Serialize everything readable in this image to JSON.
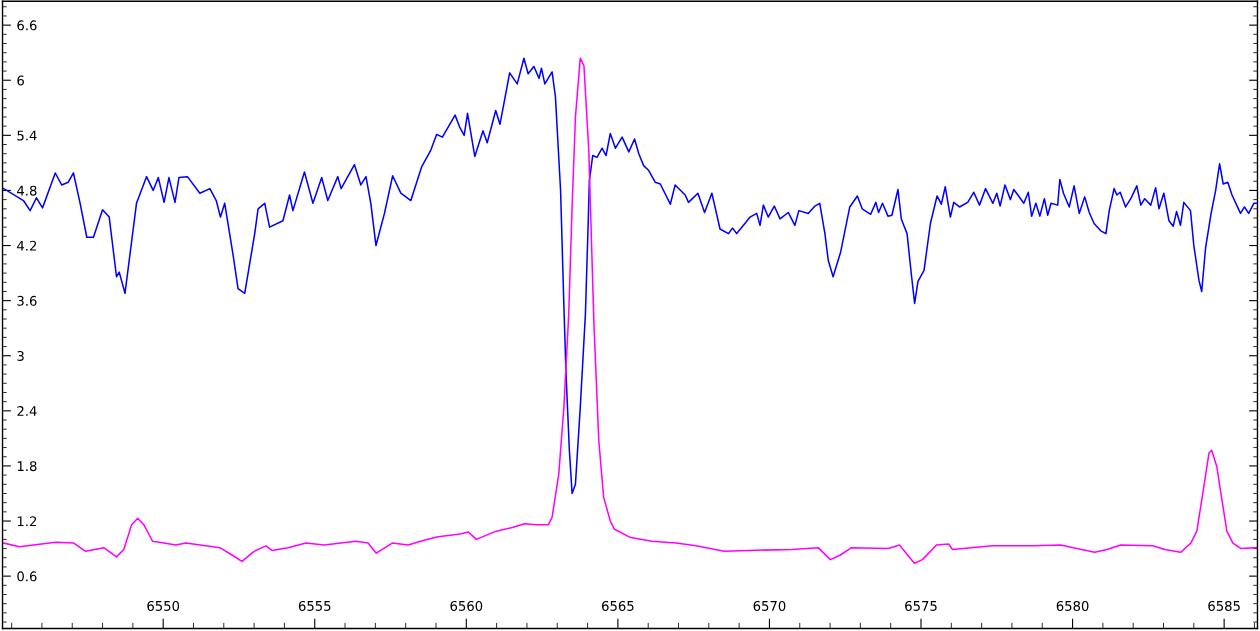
{
  "chart_data": {
    "type": "line",
    "xlim": [
      6544.7,
      6586.1
    ],
    "ylim": [
      0.03,
      6.86
    ],
    "xticks": [
      {
        "value": 6545,
        "label": null
      },
      {
        "value": 6546,
        "label": null
      },
      {
        "value": 6547,
        "label": null
      },
      {
        "value": 6548,
        "label": null
      },
      {
        "value": 6549,
        "label": null
      },
      6550,
      {
        "value": 6551,
        "label": null
      },
      {
        "value": 6552,
        "label": null
      },
      {
        "value": 6553,
        "label": null
      },
      {
        "value": 6554,
        "label": null
      },
      6555,
      {
        "value": 6556,
        "label": null
      },
      {
        "value": 6557,
        "label": null
      },
      {
        "value": 6558,
        "label": null
      },
      {
        "value": 6559,
        "label": null
      },
      6560,
      {
        "value": 6561,
        "label": null
      },
      {
        "value": 6562,
        "label": null
      },
      {
        "value": 6563,
        "label": null
      },
      {
        "value": 6564,
        "label": null
      },
      6565,
      {
        "value": 6566,
        "label": null
      },
      {
        "value": 6567,
        "label": null
      },
      {
        "value": 6568,
        "label": null
      },
      {
        "value": 6569,
        "label": null
      },
      6570,
      {
        "value": 6571,
        "label": null
      },
      {
        "value": 6572,
        "label": null
      },
      {
        "value": 6573,
        "label": null
      },
      {
        "value": 6574,
        "label": null
      },
      6575,
      {
        "value": 6576,
        "label": null
      },
      {
        "value": 6577,
        "label": null
      },
      {
        "value": 6578,
        "label": null
      },
      {
        "value": 6579,
        "label": null
      },
      6580,
      {
        "value": 6581,
        "label": null
      },
      {
        "value": 6582,
        "label": null
      },
      {
        "value": 6583,
        "label": null
      },
      {
        "value": 6584,
        "label": null
      },
      6585,
      {
        "value": 6586,
        "label": null
      }
    ],
    "yticks": [
      {
        "value": 0.1,
        "label": null
      },
      {
        "value": 0.2,
        "label": null
      },
      {
        "value": 0.3,
        "label": null
      },
      {
        "value": 0.4,
        "label": null
      },
      {
        "value": 0.5,
        "label": null
      },
      0.6,
      {
        "value": 0.7,
        "label": null
      },
      {
        "value": 0.8,
        "label": null
      },
      {
        "value": 0.9,
        "label": null
      },
      {
        "value": 1.0,
        "label": null
      },
      {
        "value": 1.1,
        "label": null
      },
      1.2,
      {
        "value": 1.3,
        "label": null
      },
      {
        "value": 1.4,
        "label": null
      },
      {
        "value": 1.5,
        "label": null
      },
      {
        "value": 1.6,
        "label": null
      },
      {
        "value": 1.7,
        "label": null
      },
      1.8,
      {
        "value": 1.9,
        "label": null
      },
      {
        "value": 2.0,
        "label": null
      },
      {
        "value": 2.1,
        "label": null
      },
      {
        "value": 2.2,
        "label": null
      },
      {
        "value": 2.3,
        "label": null
      },
      2.4,
      {
        "value": 2.5,
        "label": null
      },
      {
        "value": 2.6,
        "label": null
      },
      {
        "value": 2.7,
        "label": null
      },
      {
        "value": 2.8,
        "label": null
      },
      {
        "value": 2.9,
        "label": null
      },
      3,
      {
        "value": 3.1,
        "label": null
      },
      {
        "value": 3.2,
        "label": null
      },
      {
        "value": 3.3,
        "label": null
      },
      {
        "value": 3.4,
        "label": null
      },
      {
        "value": 3.5,
        "label": null
      },
      3.6,
      {
        "value": 3.7,
        "label": null
      },
      {
        "value": 3.8,
        "label": null
      },
      {
        "value": 3.9,
        "label": null
      },
      {
        "value": 4.0,
        "label": null
      },
      {
        "value": 4.1,
        "label": null
      },
      4.2,
      {
        "value": 4.3,
        "label": null
      },
      {
        "value": 4.4,
        "label": null
      },
      {
        "value": 4.5,
        "label": null
      },
      {
        "value": 4.6,
        "label": null
      },
      {
        "value": 4.7,
        "label": null
      },
      4.8,
      {
        "value": 4.9,
        "label": null
      },
      {
        "value": 5.0,
        "label": null
      },
      {
        "value": 5.1,
        "label": null
      },
      {
        "value": 5.2,
        "label": null
      },
      {
        "value": 5.3,
        "label": null
      },
      5.4,
      {
        "value": 5.5,
        "label": null
      },
      {
        "value": 5.6,
        "label": null
      },
      {
        "value": 5.7,
        "label": null
      },
      {
        "value": 5.8,
        "label": null
      },
      {
        "value": 5.9,
        "label": null
      },
      6,
      {
        "value": 6.1,
        "label": null
      },
      {
        "value": 6.2,
        "label": null
      },
      {
        "value": 6.3,
        "label": null
      },
      {
        "value": 6.4,
        "label": null
      },
      {
        "value": 6.5,
        "label": null
      },
      6.6,
      {
        "value": 6.7,
        "label": null
      },
      {
        "value": 6.8,
        "label": null
      }
    ],
    "marker": "none",
    "line_style": "solid",
    "series": [
      {
        "color": "#0000ff",
        "x": [
          6544.74,
          6545.39,
          6545.61,
          6545.82,
          6546.02,
          6546.44,
          6546.65,
          6546.87,
          6547.04,
          6547.26,
          6547.48,
          6547.7,
          6548.0,
          6548.22,
          6548.46,
          6548.55,
          6548.74,
          6549.12,
          6549.45,
          6549.67,
          6549.84,
          6550.03,
          6550.19,
          6550.39,
          6550.52,
          6550.8,
          6551.21,
          6551.54,
          6551.75,
          6551.89,
          6552.03,
          6552.3,
          6552.47,
          6552.69,
          6553.02,
          6553.13,
          6553.35,
          6553.51,
          6553.95,
          6554.17,
          6554.28,
          6554.66,
          6554.94,
          6555.23,
          6555.43,
          6555.76,
          6555.87,
          6556.31,
          6556.52,
          6556.69,
          6556.85,
          6557.02,
          6557.3,
          6557.57,
          6557.84,
          6558.17,
          6558.53,
          6558.83,
          6559.02,
          6559.21,
          6559.63,
          6559.78,
          6559.93,
          6560.04,
          6560.28,
          6560.55,
          6560.69,
          6560.97,
          6561.11,
          6561.43,
          6561.68,
          6561.9,
          6562.04,
          6562.23,
          6562.4,
          6562.48,
          6562.59,
          6562.83,
          6562.94,
          6563.11,
          6563.22,
          6563.29,
          6563.4,
          6563.49,
          6563.6,
          6563.76,
          6563.93,
          6564.02,
          6564.06,
          6564.17,
          6564.31,
          6564.48,
          6564.61,
          6564.75,
          6564.92,
          6565.14,
          6565.36,
          6565.55,
          6565.69,
          6565.85,
          6566.01,
          6566.23,
          6566.4,
          6566.73,
          6566.89,
          6567.22,
          6567.33,
          6567.64,
          6567.86,
          6568.1,
          6568.37,
          6568.65,
          6568.78,
          6568.92,
          6569.19,
          6569.36,
          6569.58,
          6569.69,
          6569.8,
          6569.96,
          6570.16,
          6570.35,
          6570.62,
          6570.84,
          6570.97,
          6571.28,
          6571.5,
          6571.66,
          6571.83,
          6571.94,
          6572.1,
          6572.35,
          6572.65,
          6572.9,
          6573.06,
          6573.34,
          6573.51,
          6573.6,
          6573.73,
          6573.91,
          6574.04,
          6574.24,
          6574.35,
          6574.54,
          6574.68,
          6574.79,
          6574.9,
          6575.1,
          6575.31,
          6575.53,
          6575.67,
          6575.8,
          6575.97,
          6576.08,
          6576.27,
          6576.54,
          6576.74,
          6576.93,
          6577.13,
          6577.37,
          6577.5,
          6577.61,
          6577.77,
          6577.95,
          6578.06,
          6578.22,
          6578.39,
          6578.54,
          6578.65,
          6578.79,
          6578.92,
          6579.07,
          6579.18,
          6579.29,
          6579.51,
          6579.58,
          6579.7,
          6579.89,
          6580.05,
          6580.22,
          6580.4,
          6580.55,
          6580.71,
          6580.93,
          6581.1,
          6581.21,
          6581.37,
          6581.46,
          6581.57,
          6581.75,
          6581.92,
          6582.12,
          6582.25,
          6582.38,
          6582.58,
          6582.74,
          6582.85,
          6583.01,
          6583.18,
          6583.32,
          6583.43,
          6583.56,
          6583.67,
          6583.89,
          6584.0,
          6584.17,
          6584.26,
          6584.39,
          6584.57,
          6584.72,
          6584.85,
          6584.97,
          6585.12,
          6585.26,
          6585.54,
          6585.67,
          6585.81,
          6585.98,
          6586.07
        ],
        "values": [
          4.82,
          4.69,
          4.58,
          4.72,
          4.61,
          4.99,
          4.86,
          4.89,
          4.99,
          4.66,
          4.29,
          4.29,
          4.59,
          4.51,
          3.86,
          3.91,
          3.68,
          4.66,
          4.95,
          4.8,
          4.94,
          4.67,
          4.94,
          4.67,
          4.94,
          4.95,
          4.77,
          4.82,
          4.69,
          4.51,
          4.66,
          4.11,
          3.73,
          3.68,
          4.33,
          4.6,
          4.66,
          4.4,
          4.47,
          4.75,
          4.58,
          5.0,
          4.66,
          4.94,
          4.69,
          4.95,
          4.82,
          5.08,
          4.86,
          4.95,
          4.66,
          4.2,
          4.55,
          4.96,
          4.77,
          4.69,
          5.06,
          5.24,
          5.41,
          5.38,
          5.62,
          5.49,
          5.4,
          5.64,
          5.17,
          5.45,
          5.32,
          5.67,
          5.52,
          6.08,
          5.96,
          6.24,
          6.07,
          6.15,
          6.02,
          6.13,
          5.96,
          6.09,
          5.82,
          4.8,
          3.53,
          2.8,
          1.97,
          1.5,
          1.6,
          2.44,
          3.46,
          4.44,
          4.91,
          5.18,
          5.16,
          5.26,
          5.18,
          5.42,
          5.26,
          5.38,
          5.22,
          5.36,
          5.2,
          5.07,
          5.02,
          4.89,
          4.87,
          4.65,
          4.86,
          4.75,
          4.67,
          4.77,
          4.56,
          4.77,
          4.38,
          4.33,
          4.39,
          4.33,
          4.44,
          4.51,
          4.55,
          4.42,
          4.64,
          4.51,
          4.63,
          4.49,
          4.56,
          4.42,
          4.58,
          4.55,
          4.63,
          4.66,
          4.33,
          4.04,
          3.86,
          4.13,
          4.62,
          4.74,
          4.6,
          4.54,
          4.67,
          4.56,
          4.66,
          4.52,
          4.53,
          4.81,
          4.49,
          4.33,
          3.89,
          3.57,
          3.81,
          3.93,
          4.44,
          4.74,
          4.65,
          4.84,
          4.51,
          4.67,
          4.62,
          4.67,
          4.78,
          4.64,
          4.82,
          4.66,
          4.77,
          4.63,
          4.86,
          4.7,
          4.81,
          4.74,
          4.66,
          4.78,
          4.52,
          4.66,
          4.52,
          4.71,
          4.53,
          4.66,
          4.64,
          4.92,
          4.77,
          4.62,
          4.85,
          4.55,
          4.73,
          4.56,
          4.44,
          4.36,
          4.33,
          4.58,
          4.82,
          4.75,
          4.78,
          4.62,
          4.71,
          4.85,
          4.64,
          4.71,
          4.64,
          4.83,
          4.6,
          4.77,
          4.47,
          4.41,
          4.57,
          4.42,
          4.67,
          4.58,
          4.2,
          3.82,
          3.7,
          4.18,
          4.55,
          4.8,
          5.09,
          4.87,
          4.89,
          4.75,
          4.55,
          4.62,
          4.55,
          4.66,
          4.66
        ]
      },
      {
        "color": "#ff00ff",
        "x": [
          6544.74,
          6545.26,
          6546.45,
          6547.05,
          6547.44,
          6548.04,
          6548.46,
          6548.7,
          6548.96,
          6549.16,
          6549.36,
          6549.65,
          6550.02,
          6550.42,
          6550.75,
          6551.87,
          6552.27,
          6552.6,
          6553.0,
          6553.39,
          6553.59,
          6554.12,
          6554.71,
          6555.31,
          6556.36,
          6556.76,
          6557.03,
          6557.56,
          6558.08,
          6558.61,
          6559.07,
          6559.8,
          6560.07,
          6560.33,
          6560.99,
          6561.52,
          6561.92,
          6562.31,
          6562.71,
          6562.83,
          6563.05,
          6563.22,
          6563.38,
          6563.49,
          6563.6,
          6563.76,
          6563.88,
          6564.04,
          6564.21,
          6564.37,
          6564.53,
          6564.75,
          6564.89,
          6565.42,
          6566.12,
          6566.92,
          6567.58,
          6568.51,
          6569.3,
          6570.75,
          6571.61,
          6572.01,
          6572.34,
          6572.71,
          6573.92,
          6574.29,
          6574.78,
          6575.05,
          6575.51,
          6575.91,
          6576.04,
          6577.36,
          6578.68,
          6579.61,
          6580.14,
          6580.73,
          6581.13,
          6581.59,
          6582.65,
          6583.04,
          6583.57,
          6583.9,
          6584.1,
          6584.3,
          6584.5,
          6584.59,
          6584.76,
          6584.89,
          6585.09,
          6585.29,
          6585.56,
          6586.08
        ],
        "values": [
          0.96,
          0.92,
          0.97,
          0.96,
          0.87,
          0.91,
          0.81,
          0.89,
          1.16,
          1.23,
          1.16,
          0.98,
          0.96,
          0.94,
          0.96,
          0.91,
          0.83,
          0.76,
          0.87,
          0.93,
          0.88,
          0.91,
          0.96,
          0.94,
          0.98,
          0.96,
          0.85,
          0.96,
          0.94,
          0.99,
          1.03,
          1.06,
          1.08,
          1.0,
          1.09,
          1.13,
          1.17,
          1.16,
          1.16,
          1.24,
          1.71,
          2.44,
          3.46,
          4.62,
          5.6,
          6.24,
          6.16,
          5.24,
          3.35,
          2.08,
          1.46,
          1.2,
          1.11,
          1.02,
          0.98,
          0.96,
          0.93,
          0.87,
          0.88,
          0.89,
          0.91,
          0.78,
          0.83,
          0.91,
          0.9,
          0.94,
          0.74,
          0.78,
          0.94,
          0.95,
          0.89,
          0.93,
          0.93,
          0.94,
          0.9,
          0.86,
          0.89,
          0.94,
          0.93,
          0.89,
          0.86,
          0.96,
          1.09,
          1.51,
          1.94,
          1.97,
          1.79,
          1.51,
          1.09,
          0.96,
          0.9,
          0.91
        ]
      }
    ]
  }
}
